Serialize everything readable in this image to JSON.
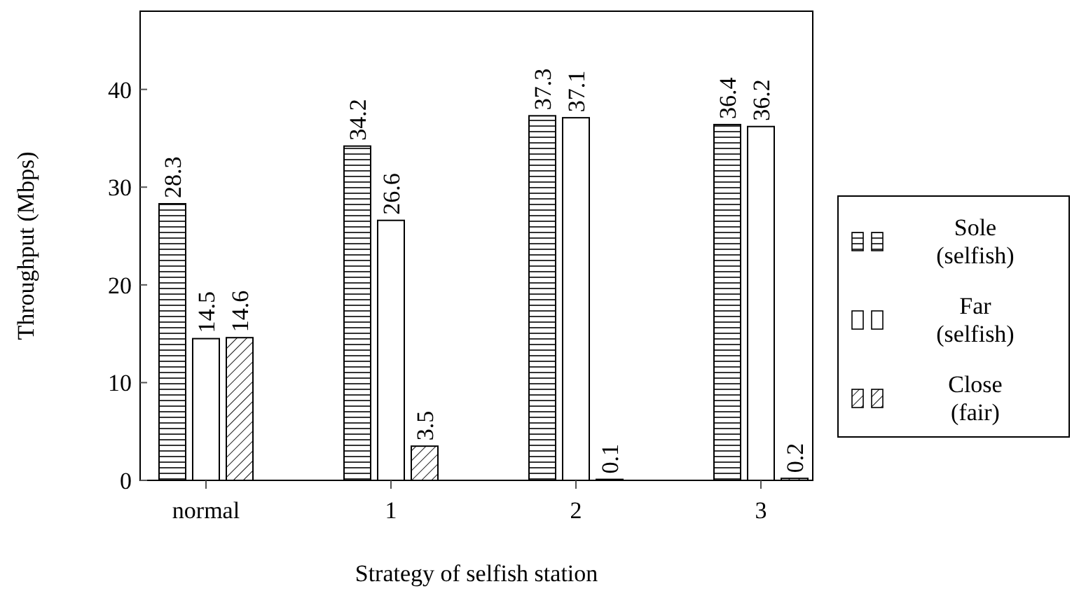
{
  "chart_data": {
    "type": "bar",
    "xlabel": "Strategy of selfish station",
    "ylabel": "Throughput (Mbps)",
    "categories": [
      "normal",
      "1",
      "2",
      "3"
    ],
    "series": [
      {
        "name": "Sole (selfish)",
        "color": "#ffffff",
        "values": [
          28.3,
          34.2,
          37.3,
          36.4
        ]
      },
      {
        "name": "Far (selfish)",
        "color": "#ffffff",
        "values": [
          14.5,
          26.6,
          37.1,
          36.2
        ]
      },
      {
        "name": "Close (fair)",
        "color": "#ffffff",
        "values": [
          14.6,
          3.5,
          0.1,
          0.2
        ]
      }
    ],
    "ylim": [
      0,
      48
    ],
    "yticks": [
      0,
      10,
      20,
      30,
      40
    ],
    "data_labels": true,
    "legend": "right",
    "grid": false
  }
}
